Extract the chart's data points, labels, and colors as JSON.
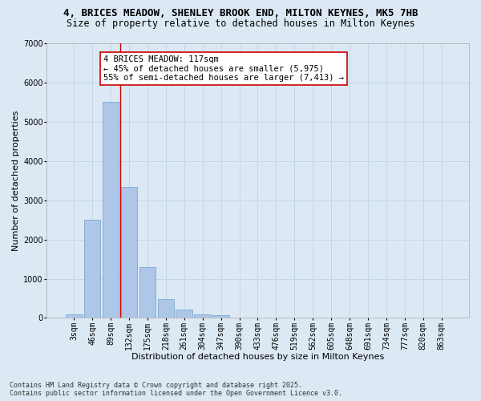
{
  "title_line1": "4, BRICES MEADOW, SHENLEY BROOK END, MILTON KEYNES, MK5 7HB",
  "title_line2": "Size of property relative to detached houses in Milton Keynes",
  "xlabel": "Distribution of detached houses by size in Milton Keynes",
  "ylabel": "Number of detached properties",
  "categories": [
    "3sqm",
    "46sqm",
    "89sqm",
    "132sqm",
    "175sqm",
    "218sqm",
    "261sqm",
    "304sqm",
    "347sqm",
    "390sqm",
    "433sqm",
    "476sqm",
    "519sqm",
    "562sqm",
    "605sqm",
    "648sqm",
    "691sqm",
    "734sqm",
    "777sqm",
    "820sqm",
    "863sqm"
  ],
  "values": [
    100,
    2500,
    5500,
    3350,
    1300,
    470,
    220,
    90,
    60,
    0,
    0,
    0,
    0,
    0,
    0,
    0,
    0,
    0,
    0,
    0,
    0
  ],
  "bar_color": "#aec6e8",
  "bar_edge_color": "#6a9fc8",
  "grid_color": "#c0d4e8",
  "background_color": "#dce9f5",
  "vline_x": 2.5,
  "vline_color": "#cc0000",
  "annotation_text": "4 BRICES MEADOW: 117sqm\n← 45% of detached houses are smaller (5,975)\n55% of semi-detached houses are larger (7,413) →",
  "annotation_box_facecolor": "#ffffff",
  "annotation_box_edgecolor": "#cc0000",
  "ylim": [
    0,
    7000
  ],
  "yticks": [
    0,
    1000,
    2000,
    3000,
    4000,
    5000,
    6000,
    7000
  ],
  "footer_line1": "Contains HM Land Registry data © Crown copyright and database right 2025.",
  "footer_line2": "Contains public sector information licensed under the Open Government Licence v3.0.",
  "title_fontsize": 9,
  "subtitle_fontsize": 8.5,
  "axis_label_fontsize": 8,
  "tick_fontsize": 7,
  "annotation_fontsize": 7.5,
  "footer_fontsize": 6
}
